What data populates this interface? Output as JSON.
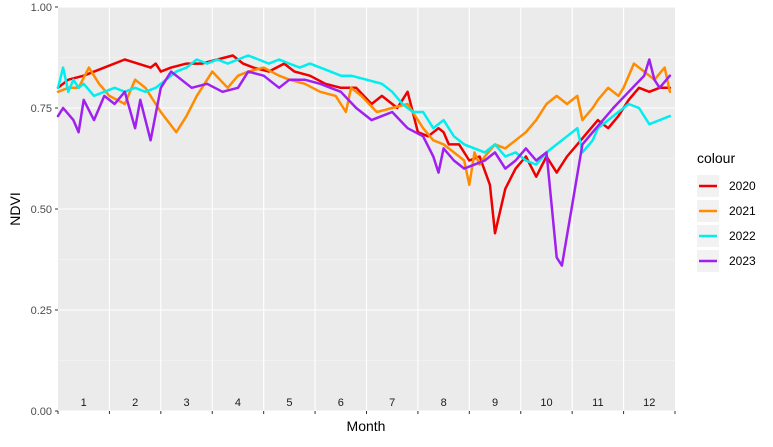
{
  "chart_data": {
    "type": "line",
    "title": "",
    "xlabel": "Month",
    "ylabel": "NDVI",
    "ylim": [
      0,
      1
    ],
    "yticks": [
      "0.00",
      "0.25",
      "0.50",
      "0.75",
      "1.00"
    ],
    "xlim": [
      0.5,
      12.5
    ],
    "months": [
      "1",
      "2",
      "3",
      "4",
      "5",
      "6",
      "7",
      "8",
      "9",
      "10",
      "11",
      "12"
    ],
    "grid": true,
    "legend": {
      "title": "colour",
      "position": "right"
    },
    "series": [
      {
        "name": "2020",
        "color": "#ee0000",
        "x": [
          0.5,
          0.7,
          1.0,
          1.4,
          1.8,
          2.3,
          2.4,
          2.5,
          2.7,
          3.0,
          3.3,
          3.6,
          3.9,
          4.1,
          4.3,
          4.6,
          4.9,
          5.1,
          5.4,
          5.7,
          6.0,
          6.3,
          6.6,
          6.8,
          7.1,
          7.3,
          7.5,
          7.7,
          7.9,
          8.0,
          8.1,
          8.3,
          8.5,
          8.7,
          8.9,
          9.0,
          9.2,
          9.4,
          9.6,
          9.8,
          10.0,
          10.2,
          10.4,
          10.6,
          10.8,
          11.0,
          11.2,
          11.4,
          11.6,
          11.8,
          12.0,
          12.2,
          12.4
        ],
        "y": [
          0.8,
          0.82,
          0.83,
          0.85,
          0.87,
          0.85,
          0.86,
          0.84,
          0.85,
          0.86,
          0.86,
          0.87,
          0.88,
          0.86,
          0.85,
          0.84,
          0.86,
          0.84,
          0.83,
          0.81,
          0.8,
          0.8,
          0.76,
          0.78,
          0.75,
          0.79,
          0.69,
          0.68,
          0.7,
          0.69,
          0.66,
          0.66,
          0.62,
          0.63,
          0.56,
          0.44,
          0.55,
          0.6,
          0.63,
          0.58,
          0.63,
          0.59,
          0.63,
          0.66,
          0.69,
          0.72,
          0.7,
          0.73,
          0.77,
          0.8,
          0.79,
          0.8,
          0.8
        ]
      },
      {
        "name": "2021",
        "color": "#ff8c00",
        "x": [
          0.5,
          0.7,
          0.9,
          1.1,
          1.3,
          1.5,
          1.8,
          2.0,
          2.2,
          2.5,
          2.8,
          3.0,
          3.2,
          3.5,
          3.8,
          4.0,
          4.2,
          4.5,
          4.8,
          5.0,
          5.3,
          5.6,
          5.9,
          6.1,
          6.2,
          6.4,
          6.7,
          7.0,
          7.3,
          7.6,
          7.8,
          8.0,
          8.2,
          8.4,
          8.5,
          8.6,
          8.7,
          8.8,
          9.0,
          9.2,
          9.4,
          9.6,
          9.8,
          10.0,
          10.2,
          10.4,
          10.6,
          10.7,
          10.9,
          11.0,
          11.2,
          11.4,
          11.5,
          11.7,
          11.9,
          12.1,
          12.3,
          12.4
        ],
        "y": [
          0.79,
          0.8,
          0.8,
          0.85,
          0.81,
          0.78,
          0.76,
          0.82,
          0.8,
          0.74,
          0.69,
          0.73,
          0.78,
          0.84,
          0.8,
          0.83,
          0.84,
          0.85,
          0.83,
          0.82,
          0.81,
          0.79,
          0.78,
          0.74,
          0.8,
          0.78,
          0.74,
          0.75,
          0.76,
          0.7,
          0.67,
          0.66,
          0.64,
          0.62,
          0.56,
          0.64,
          0.61,
          0.63,
          0.66,
          0.65,
          0.67,
          0.69,
          0.72,
          0.76,
          0.78,
          0.76,
          0.78,
          0.72,
          0.75,
          0.77,
          0.8,
          0.78,
          0.8,
          0.86,
          0.84,
          0.82,
          0.85,
          0.79
        ]
      },
      {
        "name": "2022",
        "color": "#00eeee",
        "x": [
          0.5,
          0.6,
          0.7,
          0.8,
          0.9,
          1.0,
          1.2,
          1.4,
          1.6,
          1.8,
          2.0,
          2.2,
          2.4,
          2.6,
          2.8,
          3.0,
          3.2,
          3.4,
          3.6,
          3.8,
          4.0,
          4.2,
          4.4,
          4.6,
          4.8,
          5.0,
          5.2,
          5.4,
          5.6,
          5.8,
          6.0,
          6.2,
          6.5,
          6.8,
          7.0,
          7.2,
          7.4,
          7.6,
          7.8,
          8.0,
          8.2,
          8.4,
          8.6,
          8.8,
          9.0,
          9.2,
          9.4,
          9.6,
          9.8,
          10.0,
          10.2,
          10.4,
          10.6,
          10.7,
          10.9,
          11.0,
          11.2,
          11.4,
          11.6,
          11.8,
          12.0,
          12.2,
          12.4
        ],
        "y": [
          0.8,
          0.85,
          0.79,
          0.82,
          0.8,
          0.81,
          0.78,
          0.79,
          0.8,
          0.79,
          0.8,
          0.79,
          0.8,
          0.82,
          0.84,
          0.85,
          0.87,
          0.86,
          0.87,
          0.86,
          0.87,
          0.88,
          0.87,
          0.86,
          0.87,
          0.86,
          0.85,
          0.86,
          0.85,
          0.84,
          0.83,
          0.83,
          0.82,
          0.81,
          0.79,
          0.76,
          0.74,
          0.74,
          0.7,
          0.72,
          0.68,
          0.66,
          0.65,
          0.64,
          0.66,
          0.63,
          0.64,
          0.62,
          0.61,
          0.64,
          0.66,
          0.68,
          0.7,
          0.64,
          0.67,
          0.7,
          0.72,
          0.74,
          0.76,
          0.75,
          0.71,
          0.72,
          0.73
        ]
      },
      {
        "name": "2023",
        "color": "#a020f0",
        "x": [
          0.5,
          0.6,
          0.8,
          0.9,
          1.0,
          1.2,
          1.4,
          1.6,
          1.8,
          2.0,
          2.1,
          2.3,
          2.5,
          2.7,
          2.9,
          3.1,
          3.4,
          3.7,
          4.0,
          4.2,
          4.5,
          4.8,
          5.0,
          5.3,
          5.6,
          6.0,
          6.3,
          6.6,
          7.0,
          7.3,
          7.6,
          7.8,
          7.9,
          8.0,
          8.2,
          8.4,
          8.6,
          8.8,
          9.0,
          9.2,
          9.4,
          9.6,
          9.8,
          10.0,
          10.2,
          10.3,
          10.5,
          10.7,
          10.9,
          11.1,
          11.3,
          11.6,
          11.9,
          12.0,
          12.1,
          12.2,
          12.4
        ],
        "y": [
          0.73,
          0.75,
          0.72,
          0.69,
          0.77,
          0.72,
          0.78,
          0.76,
          0.79,
          0.7,
          0.77,
          0.67,
          0.8,
          0.84,
          0.82,
          0.8,
          0.81,
          0.79,
          0.8,
          0.84,
          0.83,
          0.8,
          0.82,
          0.82,
          0.81,
          0.79,
          0.75,
          0.72,
          0.74,
          0.7,
          0.68,
          0.63,
          0.59,
          0.65,
          0.62,
          0.6,
          0.61,
          0.62,
          0.64,
          0.6,
          0.62,
          0.65,
          0.62,
          0.64,
          0.38,
          0.36,
          0.51,
          0.66,
          0.69,
          0.72,
          0.75,
          0.79,
          0.83,
          0.87,
          0.82,
          0.8,
          0.83
        ]
      }
    ]
  }
}
